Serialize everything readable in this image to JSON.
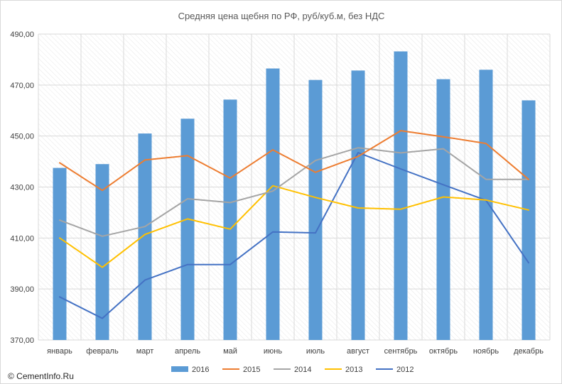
{
  "chart_data": {
    "type": "bar",
    "title": "Средняя цена щебня по РФ, руб/куб.м, без НДС",
    "categories": [
      "январь",
      "февраль",
      "март",
      "апрель",
      "май",
      "июнь",
      "июль",
      "август",
      "сентябрь",
      "октябрь",
      "ноябрь",
      "декабрь"
    ],
    "ylim": [
      370,
      490
    ],
    "yticks": [
      "370,00",
      "390,00",
      "410,00",
      "430,00",
      "450,00",
      "470,00",
      "490,00"
    ],
    "grid": true,
    "legend_position": "bottom",
    "series": [
      {
        "name": "2016",
        "kind": "bar",
        "color": "#5b9bd5",
        "values": [
          437.5,
          439.0,
          451.0,
          456.8,
          464.3,
          476.5,
          472.0,
          475.7,
          483.2,
          472.3,
          476.0,
          464.0
        ]
      },
      {
        "name": "2015",
        "kind": "line",
        "color": "#ed7d31",
        "values": [
          439.5,
          428.7,
          440.6,
          442.3,
          433.5,
          444.6,
          435.8,
          442.0,
          452.1,
          449.7,
          447.1,
          433.0
        ]
      },
      {
        "name": "2014",
        "kind": "line",
        "color": "#a5a5a5",
        "values": [
          417.0,
          410.7,
          414.5,
          425.4,
          423.9,
          428.4,
          440.4,
          445.4,
          443.4,
          445.0,
          433.0,
          433.0
        ]
      },
      {
        "name": "2013",
        "kind": "line",
        "color": "#ffc000",
        "values": [
          410.0,
          398.5,
          411.4,
          417.5,
          413.5,
          430.5,
          425.9,
          421.8,
          421.3,
          426.1,
          424.9,
          421.0
        ]
      },
      {
        "name": "2012",
        "kind": "line",
        "color": "#4472c4",
        "values": [
          386.9,
          378.5,
          393.5,
          399.6,
          399.6,
          412.4,
          412.0,
          443.5,
          437.1,
          430.9,
          424.8,
          400.3
        ]
      }
    ]
  },
  "footer": {
    "copyright": "© CementInfo.Ru"
  }
}
